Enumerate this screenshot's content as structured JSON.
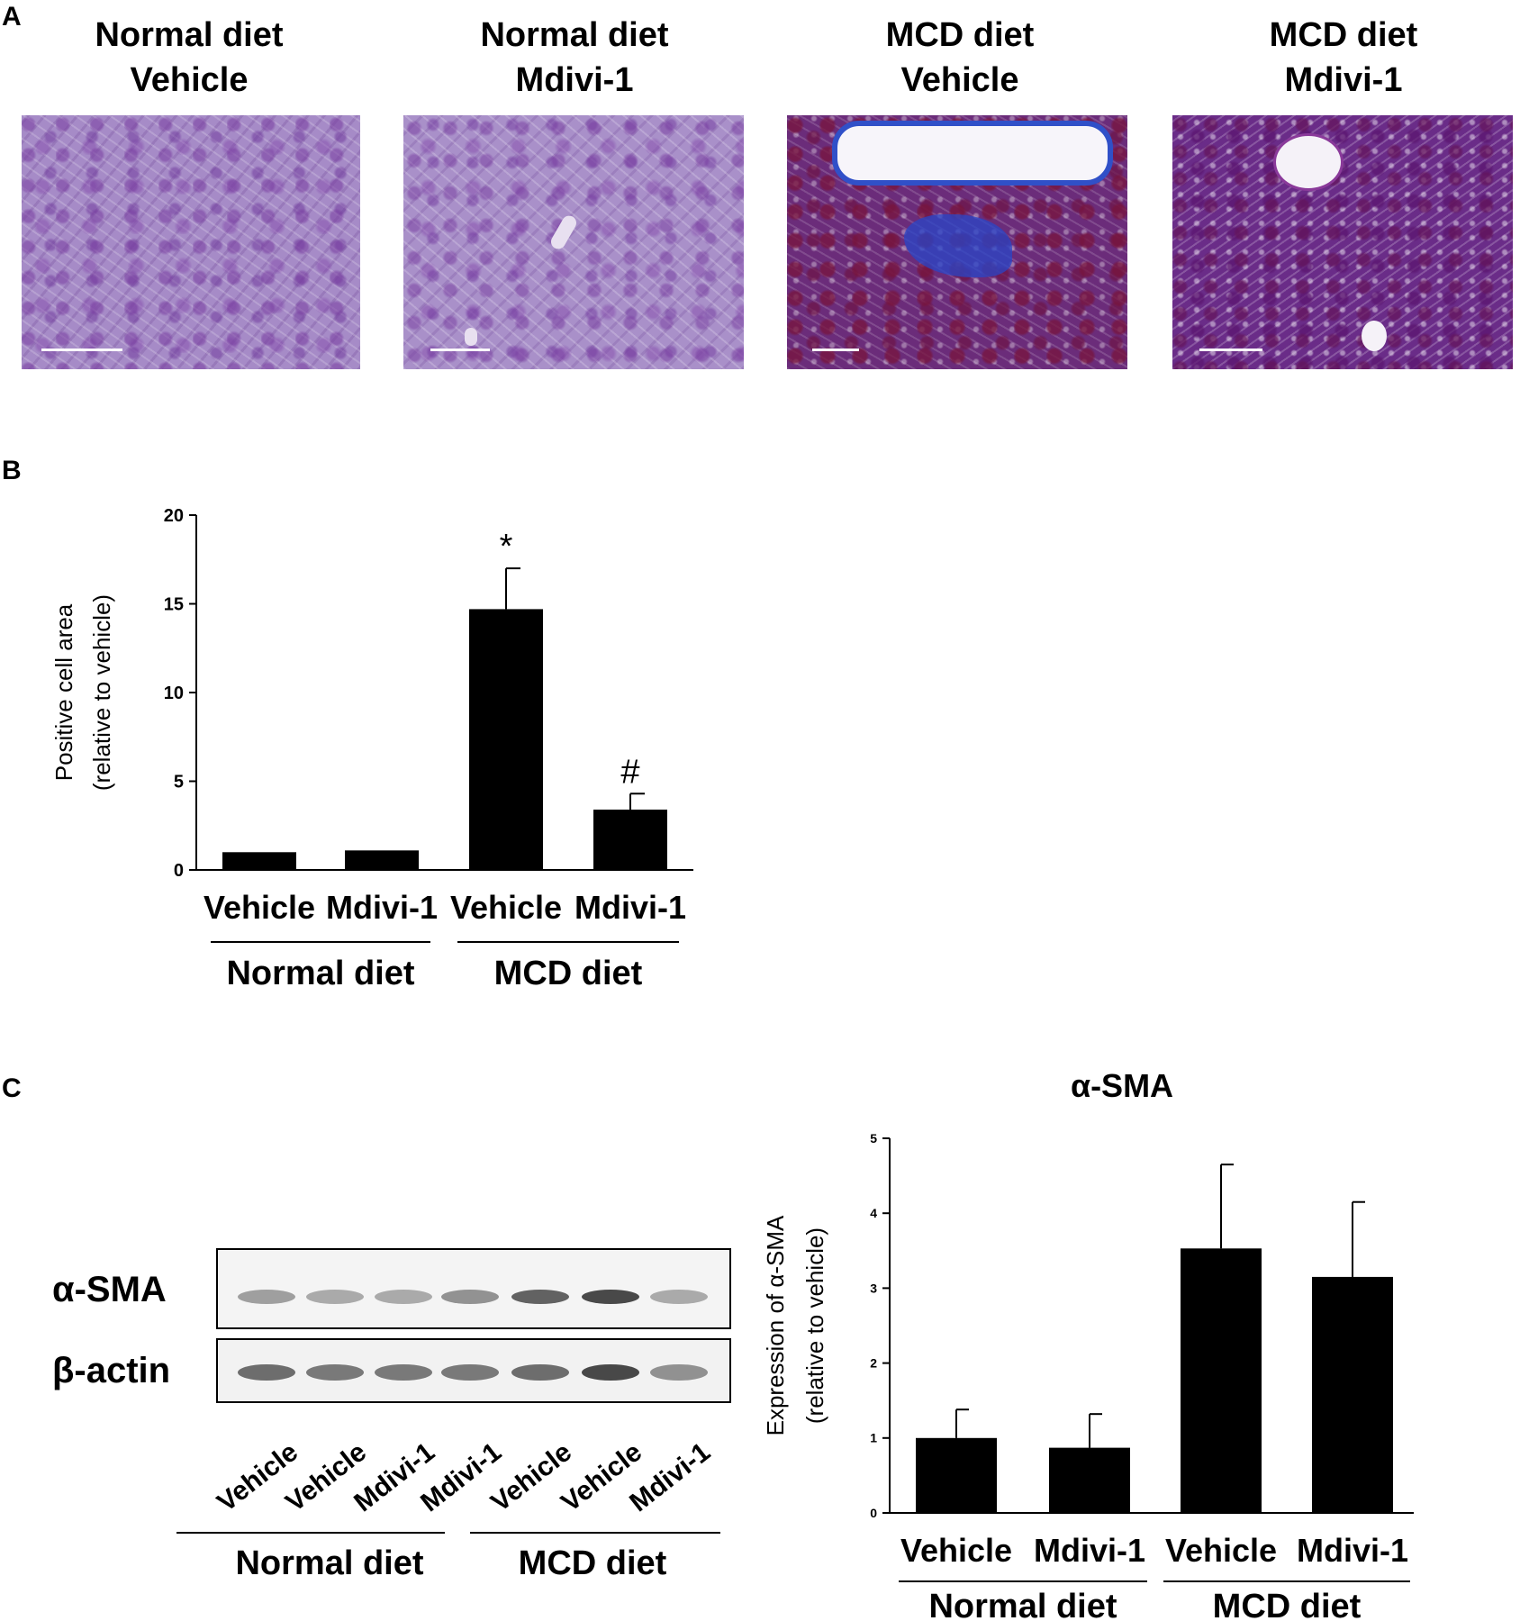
{
  "panels": {
    "a_letter": "A",
    "b_letter": "B",
    "c_letter": "C"
  },
  "micrographs": [
    {
      "line1": "Normal diet",
      "line2": "Vehicle",
      "stain": "light-purple"
    },
    {
      "line1": "Normal diet",
      "line2": "Mdivi-1",
      "stain": "light-purple"
    },
    {
      "line1": "MCD diet",
      "line2": "Vehicle",
      "stain": "dark-purple-blue-fibrosis"
    },
    {
      "line1": "MCD diet",
      "line2": "Mdivi-1",
      "stain": "dark-purple"
    }
  ],
  "blot": {
    "rows": [
      "α-SMA",
      "β-actin"
    ],
    "lane_labels": [
      "Vehicle",
      "Vehicle",
      "Mdivi-1",
      "Mdivi-1",
      "Vehicle",
      "Vehicle",
      "Mdivi-1"
    ],
    "group_labels": [
      "Normal diet",
      "MCD diet"
    ]
  },
  "chart_data": [
    {
      "type": "bar",
      "panel": "B",
      "categories": [
        "Vehicle",
        "Mdivi-1",
        "Vehicle",
        "Mdivi-1"
      ],
      "groups": [
        {
          "label": "Normal diet",
          "members": [
            0,
            1
          ]
        },
        {
          "label": "MCD diet",
          "members": [
            2,
            3
          ]
        }
      ],
      "values": [
        1.0,
        1.1,
        14.7,
        3.4
      ],
      "errors": [
        0,
        0,
        2.3,
        0.9
      ],
      "annotations": [
        "",
        "",
        "*",
        "#"
      ],
      "ylabel_line1": "Positive cell area",
      "ylabel_line2": "(relative to vehicle)",
      "ylim": [
        0,
        20
      ],
      "yticks": [
        0,
        5,
        10,
        15,
        20
      ],
      "bar_color": "#000000"
    },
    {
      "type": "bar",
      "panel": "C",
      "title": "α-SMA",
      "categories": [
        "Vehicle",
        "Mdivi-1",
        "Vehicle",
        "Mdivi-1"
      ],
      "groups": [
        {
          "label": "Normal diet",
          "members": [
            0,
            1
          ]
        },
        {
          "label": "MCD diet",
          "members": [
            2,
            3
          ]
        }
      ],
      "values": [
        1.0,
        0.87,
        3.53,
        3.15
      ],
      "errors": [
        0.38,
        0.45,
        1.12,
        1.0
      ],
      "ylabel_line1": "Expression of α-SMA",
      "ylabel_line2": "(relative to vehicle)",
      "ylim": [
        0,
        5
      ],
      "yticks": [
        0,
        1,
        2,
        3,
        4,
        5
      ],
      "bar_color": "#000000"
    }
  ]
}
